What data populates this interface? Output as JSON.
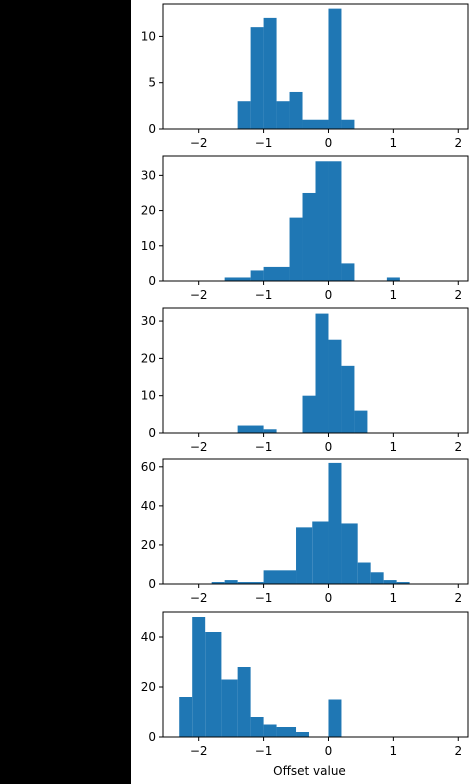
{
  "chart_data": {
    "type": "histogram-stack",
    "xlabel": "Offset value",
    "xlim": [
      -2.55,
      2.15
    ],
    "xticks": [
      -2,
      -1,
      0,
      1,
      2
    ],
    "xtick_labels": [
      "−2",
      "−1",
      "0",
      "1",
      "2"
    ],
    "bar_color": "#1f77b4",
    "grid": false,
    "panels": [
      {
        "ylim": [
          0,
          13.5
        ],
        "yticks": [
          0,
          5,
          10
        ],
        "bins": [
          {
            "x0": -1.4,
            "x1": -1.2,
            "count": 3
          },
          {
            "x0": -1.2,
            "x1": -1.0,
            "count": 11
          },
          {
            "x0": -1.0,
            "x1": -0.8,
            "count": 12
          },
          {
            "x0": -0.8,
            "x1": -0.6,
            "count": 3
          },
          {
            "x0": -0.6,
            "x1": -0.4,
            "count": 4
          },
          {
            "x0": -0.4,
            "x1": -0.2,
            "count": 1
          },
          {
            "x0": -0.2,
            "x1": 0.0,
            "count": 1
          },
          {
            "x0": 0.0,
            "x1": 0.2,
            "count": 13
          },
          {
            "x0": 0.2,
            "x1": 0.4,
            "count": 1
          }
        ]
      },
      {
        "ylim": [
          0,
          35.5
        ],
        "yticks": [
          0,
          10,
          20,
          30
        ],
        "bins": [
          {
            "x0": -1.6,
            "x1": -1.2,
            "count": 1
          },
          {
            "x0": -1.2,
            "x1": -1.0,
            "count": 3
          },
          {
            "x0": -1.0,
            "x1": -0.6,
            "count": 4
          },
          {
            "x0": -0.6,
            "x1": -0.4,
            "count": 18
          },
          {
            "x0": -0.4,
            "x1": -0.2,
            "count": 25
          },
          {
            "x0": -0.2,
            "x1": 0.0,
            "count": 34
          },
          {
            "x0": 0.0,
            "x1": 0.2,
            "count": 34
          },
          {
            "x0": 0.2,
            "x1": 0.4,
            "count": 5
          },
          {
            "x0": 0.9,
            "x1": 1.1,
            "count": 1
          }
        ]
      },
      {
        "ylim": [
          0,
          33.5
        ],
        "yticks": [
          0,
          10,
          20,
          30
        ],
        "bins": [
          {
            "x0": -1.4,
            "x1": -1.0,
            "count": 2
          },
          {
            "x0": -1.0,
            "x1": -0.8,
            "count": 1
          },
          {
            "x0": -0.4,
            "x1": -0.2,
            "count": 10
          },
          {
            "x0": -0.2,
            "x1": 0.0,
            "count": 32
          },
          {
            "x0": 0.0,
            "x1": 0.2,
            "count": 25
          },
          {
            "x0": 0.2,
            "x1": 0.4,
            "count": 18
          },
          {
            "x0": 0.4,
            "x1": 0.6,
            "count": 6
          }
        ]
      },
      {
        "ylim": [
          0,
          64
        ],
        "yticks": [
          0,
          20,
          40,
          60
        ],
        "bins": [
          {
            "x0": -1.8,
            "x1": -1.6,
            "count": 1
          },
          {
            "x0": -1.6,
            "x1": -1.4,
            "count": 2
          },
          {
            "x0": -1.4,
            "x1": -1.0,
            "count": 1
          },
          {
            "x0": -1.0,
            "x1": -0.5,
            "count": 7
          },
          {
            "x0": -0.5,
            "x1": -0.25,
            "count": 29
          },
          {
            "x0": -0.25,
            "x1": 0.0,
            "count": 32
          },
          {
            "x0": 0.0,
            "x1": 0.2,
            "count": 62
          },
          {
            "x0": 0.2,
            "x1": 0.45,
            "count": 31
          },
          {
            "x0": 0.45,
            "x1": 0.65,
            "count": 11
          },
          {
            "x0": 0.65,
            "x1": 0.85,
            "count": 6
          },
          {
            "x0": 0.85,
            "x1": 1.05,
            "count": 2
          },
          {
            "x0": 1.05,
            "x1": 1.25,
            "count": 1
          }
        ]
      },
      {
        "ylim": [
          0,
          50
        ],
        "yticks": [
          0,
          20,
          40
        ],
        "bins": [
          {
            "x0": -2.3,
            "x1": -2.1,
            "count": 16
          },
          {
            "x0": -2.1,
            "x1": -1.9,
            "count": 48
          },
          {
            "x0": -1.9,
            "x1": -1.65,
            "count": 42
          },
          {
            "x0": -1.65,
            "x1": -1.4,
            "count": 23
          },
          {
            "x0": -1.4,
            "x1": -1.2,
            "count": 28
          },
          {
            "x0": -1.2,
            "x1": -1.0,
            "count": 8
          },
          {
            "x0": -1.0,
            "x1": -0.8,
            "count": 5
          },
          {
            "x0": -0.8,
            "x1": -0.5,
            "count": 4
          },
          {
            "x0": -0.5,
            "x1": -0.3,
            "count": 2
          },
          {
            "x0": 0.0,
            "x1": 0.2,
            "count": 15
          }
        ]
      }
    ]
  }
}
